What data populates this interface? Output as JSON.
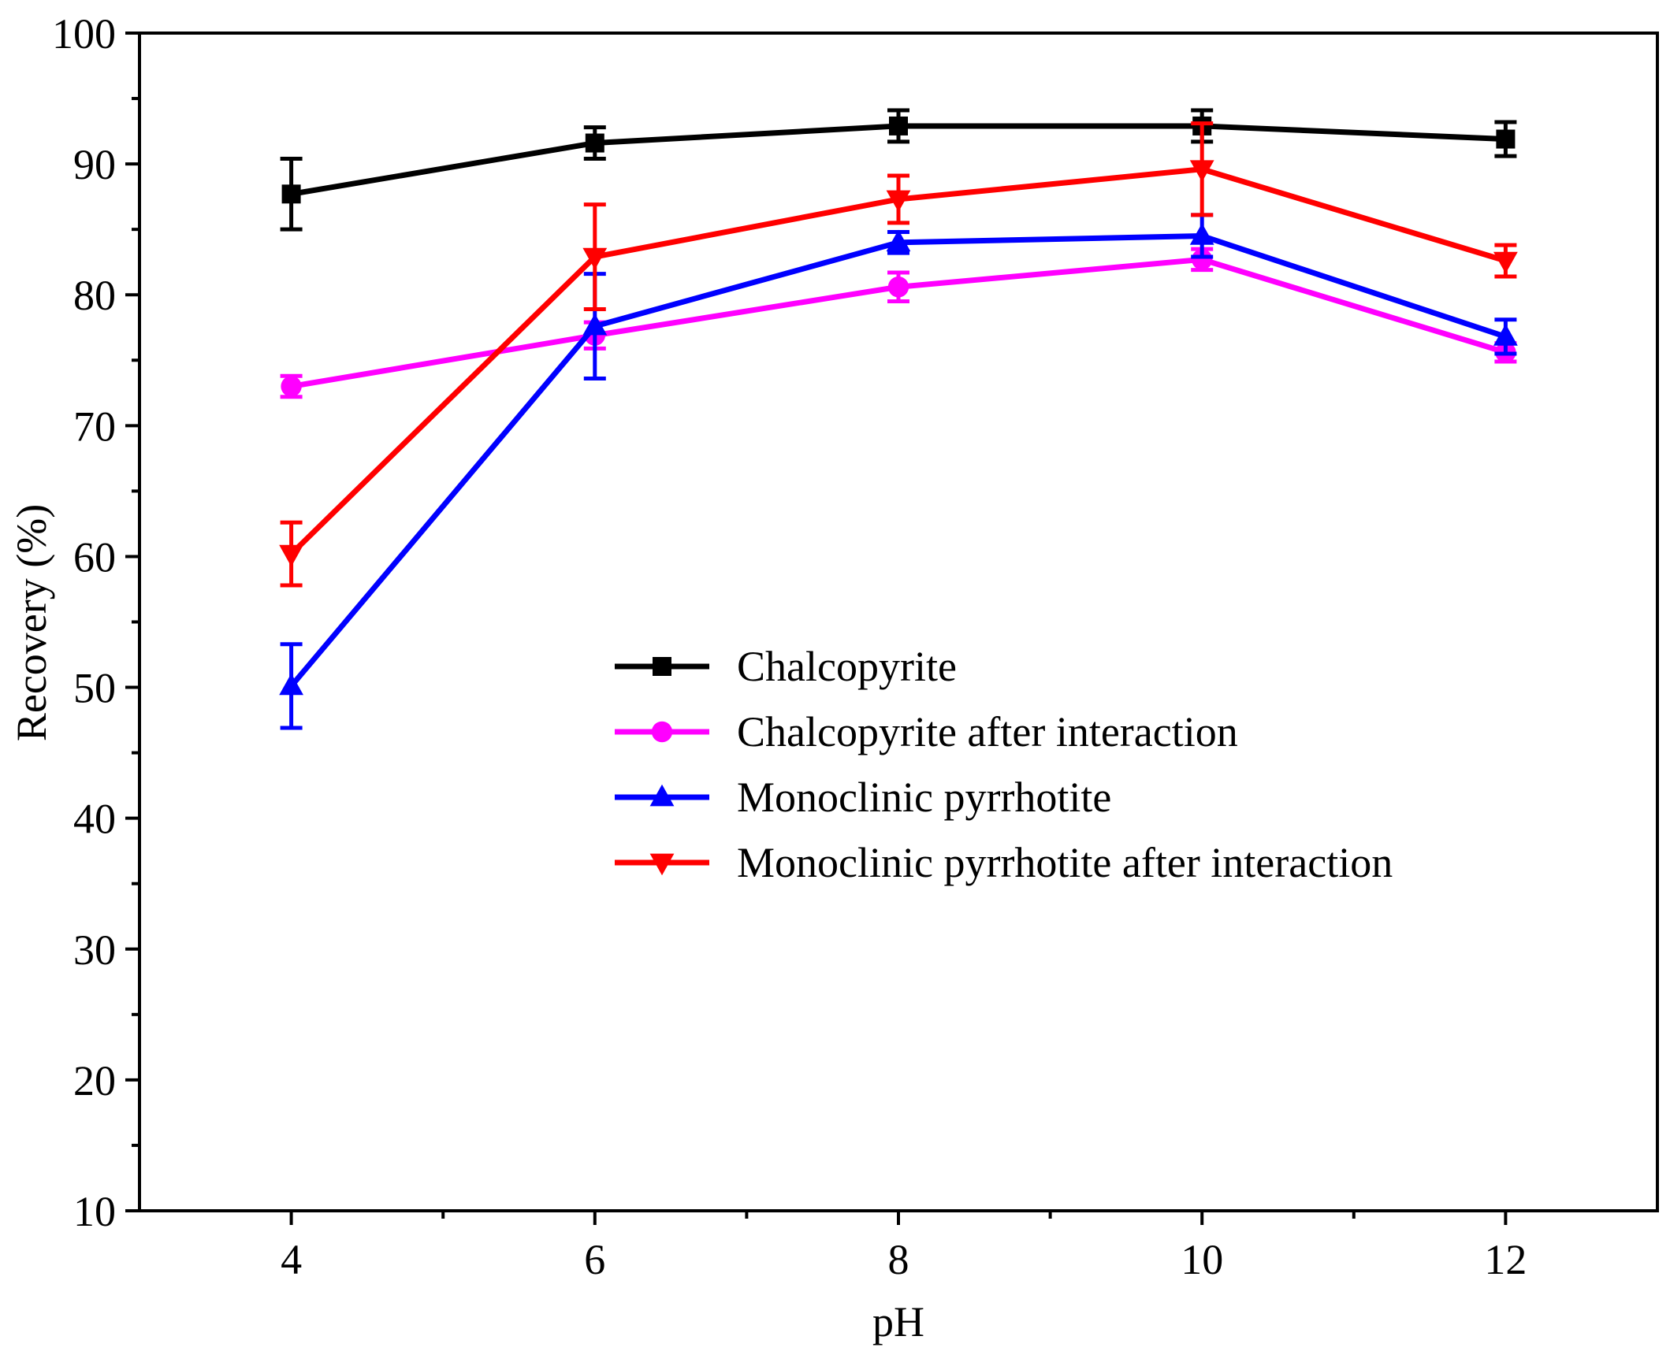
{
  "chart_data": {
    "type": "line",
    "title": "",
    "xlabel": "pH",
    "ylabel": "Recovery (%)",
    "xlim": [
      3,
      13
    ],
    "ylim": [
      10,
      100
    ],
    "x_ticks": [
      4,
      6,
      8,
      10,
      12
    ],
    "y_ticks": [
      10,
      20,
      30,
      40,
      50,
      60,
      70,
      80,
      90,
      100
    ],
    "grid": false,
    "legend_position": "center-right",
    "x": [
      4,
      6,
      8,
      10,
      12
    ],
    "series": [
      {
        "name": "Chalcopyrite",
        "color": "#000000",
        "marker": "square",
        "values": [
          87.7,
          91.6,
          92.9,
          92.9,
          91.9
        ],
        "errors": [
          2.7,
          1.2,
          1.2,
          1.2,
          1.3
        ]
      },
      {
        "name": "Chalcopyrite after interaction",
        "color": "#ff00ff",
        "marker": "circle",
        "values": [
          73.0,
          76.9,
          80.6,
          82.7,
          75.6
        ],
        "errors": [
          0.8,
          1.0,
          1.1,
          0.8,
          0.7
        ]
      },
      {
        "name": "Monoclinic pyrrhotite",
        "color": "#0000ff",
        "marker": "triangle-up",
        "values": [
          50.1,
          77.6,
          84.0,
          84.5,
          76.8
        ],
        "errors": [
          3.2,
          4.0,
          0.8,
          1.6,
          1.3
        ]
      },
      {
        "name": "Monoclinic pyrrhotite after interaction",
        "color": "#ff0000",
        "marker": "triangle-down",
        "values": [
          60.2,
          82.9,
          87.3,
          89.6,
          82.6
        ],
        "errors": [
          2.4,
          4.0,
          1.8,
          3.5,
          1.2
        ]
      }
    ]
  }
}
